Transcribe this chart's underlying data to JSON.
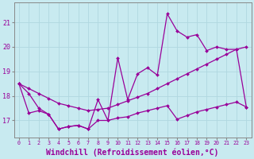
{
  "background_color": "#c8eaf0",
  "grid_color": "#b0d8e0",
  "line_color": "#990099",
  "xlabel": "Windchill (Refroidissement éolien,°C)",
  "yticks": [
    17,
    18,
    19,
    20,
    21
  ],
  "xticks": [
    0,
    1,
    2,
    3,
    4,
    5,
    6,
    7,
    8,
    9,
    10,
    11,
    12,
    13,
    14,
    15,
    16,
    17,
    18,
    19,
    20,
    21,
    22,
    23
  ],
  "xlim": [
    -0.5,
    23.5
  ],
  "ylim": [
    16.3,
    21.8
  ],
  "series_main_x": [
    0,
    1,
    2,
    3,
    4,
    5,
    6,
    7,
    8,
    9,
    10,
    11,
    12,
    13,
    14,
    15,
    16,
    17,
    18,
    19,
    20,
    21,
    22,
    23
  ],
  "series_main_y": [
    18.5,
    18.1,
    17.5,
    17.25,
    16.65,
    16.75,
    16.8,
    16.65,
    17.85,
    17.0,
    19.55,
    17.85,
    18.9,
    19.15,
    18.85,
    21.35,
    20.65,
    20.4,
    20.5,
    19.85,
    20.0,
    19.9,
    19.9,
    17.55
  ],
  "series_trend_x": [
    0,
    1,
    2,
    3,
    4,
    5,
    6,
    7,
    8,
    9,
    10,
    11,
    12,
    13,
    14,
    15,
    16,
    17,
    18,
    19,
    20,
    21,
    22,
    23
  ],
  "series_trend_y": [
    18.5,
    18.3,
    18.1,
    17.9,
    17.7,
    17.6,
    17.5,
    17.4,
    17.45,
    17.5,
    17.65,
    17.8,
    17.95,
    18.1,
    18.3,
    18.5,
    18.7,
    18.9,
    19.1,
    19.3,
    19.5,
    19.7,
    19.9,
    20.0
  ],
  "series_low_x": [
    0,
    1,
    2,
    3,
    4,
    5,
    6,
    7,
    8,
    9,
    10,
    11,
    12,
    13,
    14,
    15,
    16,
    17,
    18,
    19,
    20,
    21,
    22,
    23
  ],
  "series_low_y": [
    18.5,
    17.3,
    17.4,
    17.25,
    16.65,
    16.75,
    16.8,
    16.65,
    17.0,
    17.0,
    17.1,
    17.15,
    17.3,
    17.4,
    17.5,
    17.6,
    17.05,
    17.2,
    17.35,
    17.45,
    17.55,
    17.65,
    17.75,
    17.55
  ]
}
